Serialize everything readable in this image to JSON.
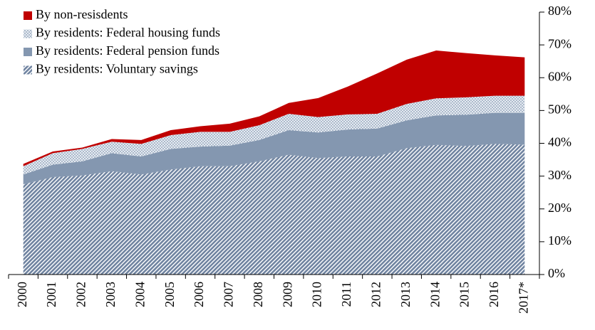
{
  "chart_data": {
    "type": "stacked_area",
    "categories": [
      "2000",
      "2001",
      "2002",
      "2003",
      "2004",
      "2005",
      "2006",
      "2007",
      "2008",
      "2009",
      "2010",
      "2011",
      "2012",
      "2013",
      "2014",
      "2015",
      "2016",
      "2017*"
    ],
    "series": [
      {
        "name": "By residents: Voluntary savings",
        "color": "#8497b0",
        "fill": "hatch",
        "values": [
          27.5,
          29.7,
          30.2,
          31.5,
          30.5,
          32,
          33,
          33,
          34.5,
          36.5,
          35.5,
          36,
          36,
          38.5,
          39.5,
          39.2,
          39.8,
          39.6
        ]
      },
      {
        "name": "By residents: Federal pension funds",
        "color": "#8497b0",
        "fill": "solid",
        "values": [
          3,
          3.8,
          4.3,
          5.5,
          5.5,
          6.3,
          6,
          6.3,
          6.5,
          7.5,
          7.8,
          8.2,
          8.5,
          8.5,
          9,
          9.5,
          9.5,
          9.7
        ]
      },
      {
        "name": "By residents: Federal housing funds",
        "color": "#adb9ca",
        "fill": "dots",
        "values": [
          2.5,
          3.5,
          3.8,
          3.5,
          3.8,
          4.2,
          4.5,
          4.2,
          4.5,
          5,
          4.7,
          4.6,
          4.5,
          5,
          5.2,
          5.3,
          5.2,
          5.2
        ]
      },
      {
        "name": "By non-resisdents",
        "color": "#c00000",
        "fill": "solid",
        "values": [
          0.7,
          0.5,
          0.4,
          0.8,
          1.2,
          1.5,
          1.7,
          2.5,
          2.7,
          3.3,
          5.8,
          8.5,
          12.3,
          13.5,
          14.6,
          13.5,
          12.3,
          11.7
        ]
      }
    ],
    "ylim": [
      0,
      80
    ],
    "yticks": [
      {
        "value": 0,
        "label": "0%"
      },
      {
        "value": 10,
        "label": "10%"
      },
      {
        "value": 20,
        "label": "20%"
      },
      {
        "value": 30,
        "label": "30%"
      },
      {
        "value": 40,
        "label": "40%"
      },
      {
        "value": 50,
        "label": "50%"
      },
      {
        "value": 60,
        "label": "60%"
      },
      {
        "value": 70,
        "label": "70%"
      },
      {
        "value": 80,
        "label": "80%"
      }
    ],
    "y_axis_side": "right"
  }
}
